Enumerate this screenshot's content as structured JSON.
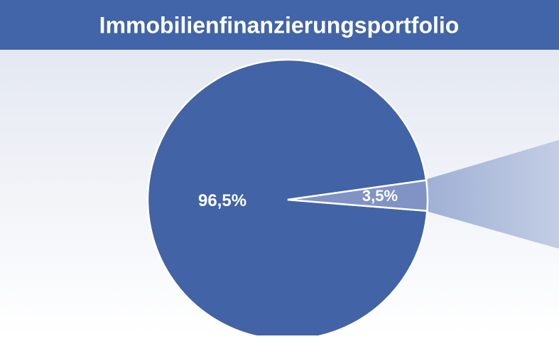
{
  "chart_data": {
    "type": "pie",
    "title": "Immobilienfinanzierungsportfolio",
    "series": [
      {
        "values": [
          96.5,
          3.5
        ],
        "value_labels": [
          "96,5%",
          "3,5%"
        ],
        "colors": [
          "#4263a6",
          "#8093c4"
        ]
      }
    ]
  }
}
